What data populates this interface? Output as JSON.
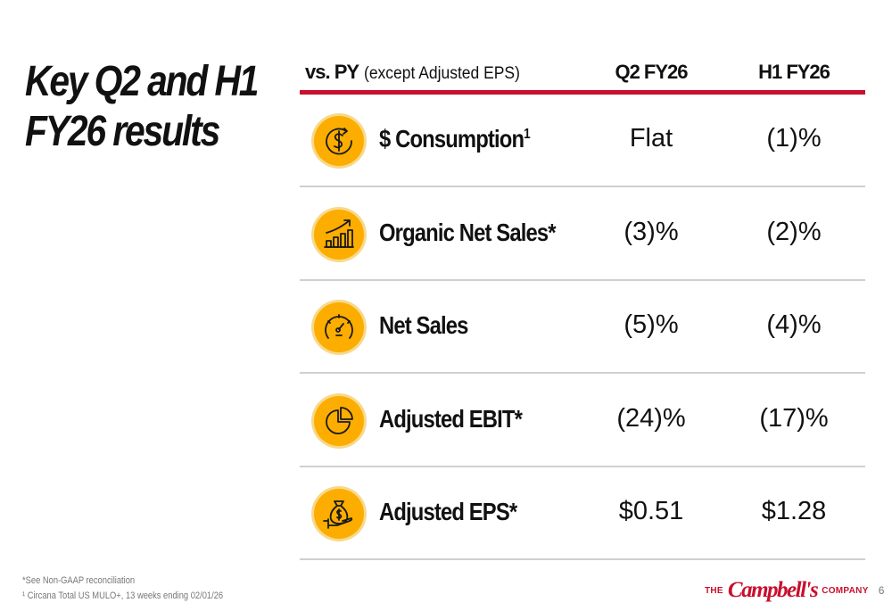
{
  "title": {
    "line1": "Key Q2 and H1",
    "line2": "FY26 results"
  },
  "header": {
    "vs_bold": "vs. PY",
    "vs_note": "(except Adjusted EPS)",
    "col1": "Q2 FY26",
    "col2": "H1 FY26"
  },
  "rows": [
    {
      "icon": "dollar-cycle-icon",
      "label": "$ Consumption",
      "sup": "1",
      "q2": "Flat",
      "h1": "(1)%"
    },
    {
      "icon": "growth-chart-icon",
      "label": "Organic Net Sales*",
      "q2": "(3)%",
      "h1": "(2)%"
    },
    {
      "icon": "speedometer-icon",
      "label": "Net Sales",
      "q2": "(5)%",
      "h1": "(4)%"
    },
    {
      "icon": "pie-chart-icon",
      "label": "Adjusted EBIT*",
      "q2": "(24)%",
      "h1": "(17)%"
    },
    {
      "icon": "money-bag-hand-icon",
      "label": "Adjusted EPS*",
      "q2": "$0.51",
      "h1": "$1.28"
    }
  ],
  "footnotes": [
    "*See Non-GAAP reconciliation",
    "¹ Circana Total US MULO+, 13 weeks ending 02/01/26"
  ],
  "logo": {
    "pre": "THE",
    "name": "Campbell's",
    "post": "COMPANY"
  },
  "page_number": "6",
  "colors": {
    "accent_red": "#c8102e",
    "icon_gold": "#fcad00"
  }
}
